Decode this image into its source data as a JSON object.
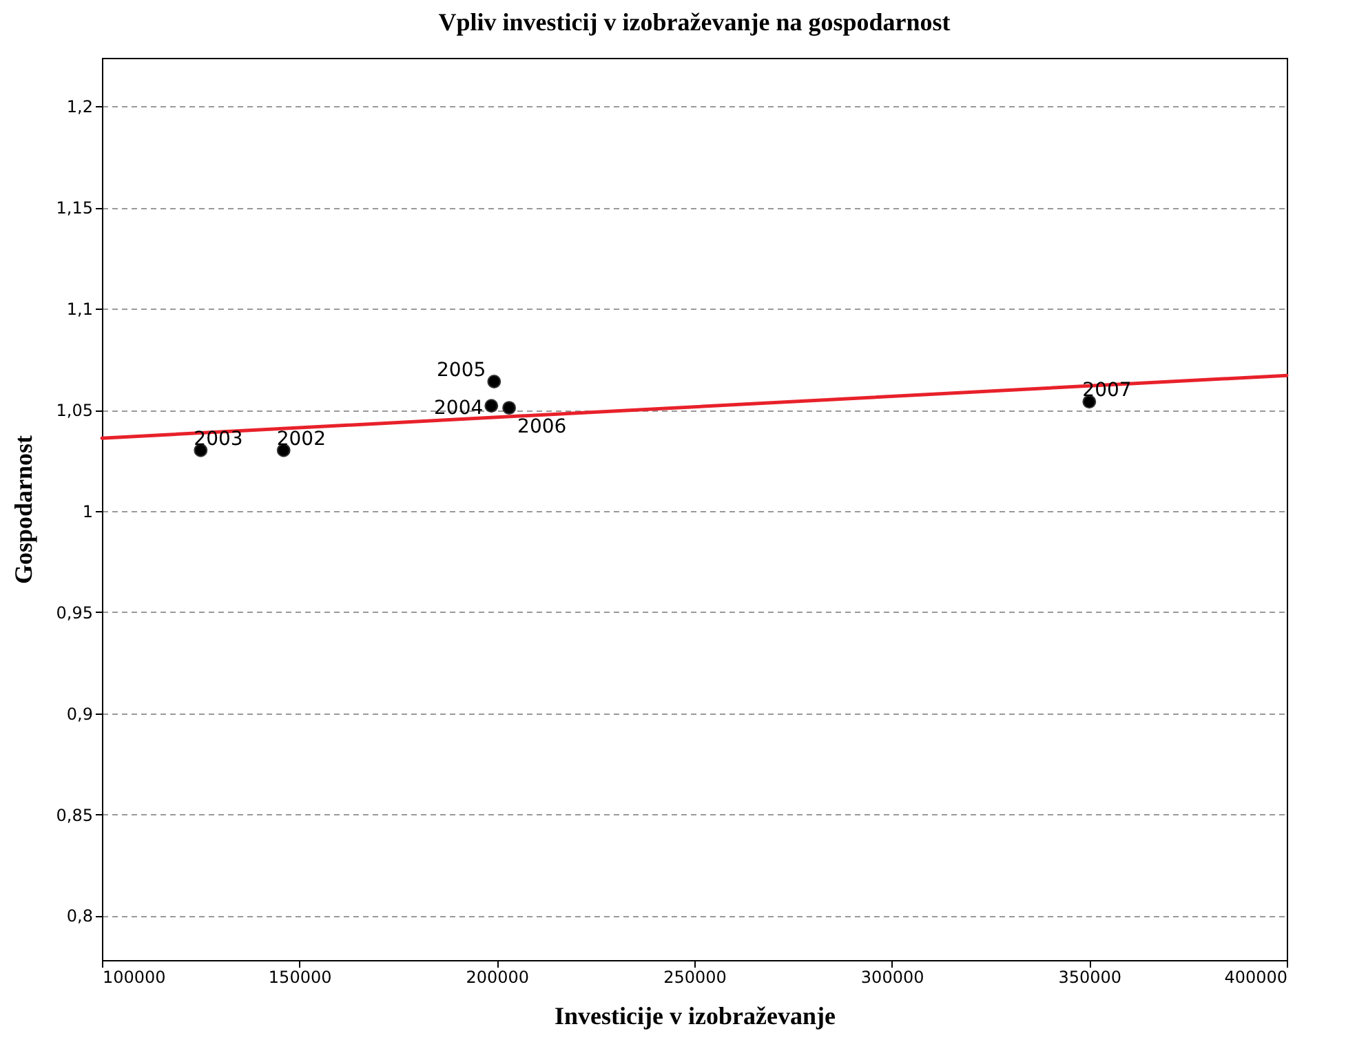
{
  "chart_data": {
    "type": "scatter",
    "title": "Vpliv investicij v izobraževanje na gospodarnost",
    "xlabel": "Investicije v izobraževanje",
    "ylabel": "Gospodarnost",
    "xlim": [
      100000,
      400000
    ],
    "xticks": [
      100000,
      150000,
      200000,
      250000,
      300000,
      350000,
      400000
    ],
    "ylim": [
      0.778,
      1.224
    ],
    "yticks": [
      {
        "value": 0.8,
        "label": "0,8"
      },
      {
        "value": 0.85,
        "label": "0,85"
      },
      {
        "value": 0.9,
        "label": "0,9"
      },
      {
        "value": 0.95,
        "label": "0,95"
      },
      {
        "value": 1,
        "label": "1"
      },
      {
        "value": 1.05,
        "label": "1,05"
      },
      {
        "value": 1.1,
        "label": "1,1"
      },
      {
        "value": 1.15,
        "label": "1,15"
      },
      {
        "value": 1.2,
        "label": "1,2"
      }
    ],
    "grid": "y",
    "series": [
      {
        "marker": "circle",
        "color": "#000000",
        "x": [
          125000,
          146000,
          198600,
          199300,
          203100,
          350000
        ],
        "values": [
          1.03,
          1.03,
          1.052,
          1.064,
          1.051,
          1.054
        ]
      },
      {
        "type": "line",
        "color": "#e8212a",
        "x": [
          100000,
          400000
        ],
        "values": [
          1.036,
          1.067
        ]
      }
    ],
    "annotations": [
      {
        "text": "2003",
        "x": 125000,
        "y": 1.03
      },
      {
        "text": "2002",
        "x": 146000,
        "y": 1.03
      },
      {
        "text": "2004",
        "x": 198600,
        "y": 1.052
      },
      {
        "text": "2005",
        "x": 199300,
        "y": 1.064
      },
      {
        "text": "2006",
        "x": 203100,
        "y": 1.051
      },
      {
        "text": "2007",
        "x": 350000,
        "y": 1.054
      }
    ]
  }
}
